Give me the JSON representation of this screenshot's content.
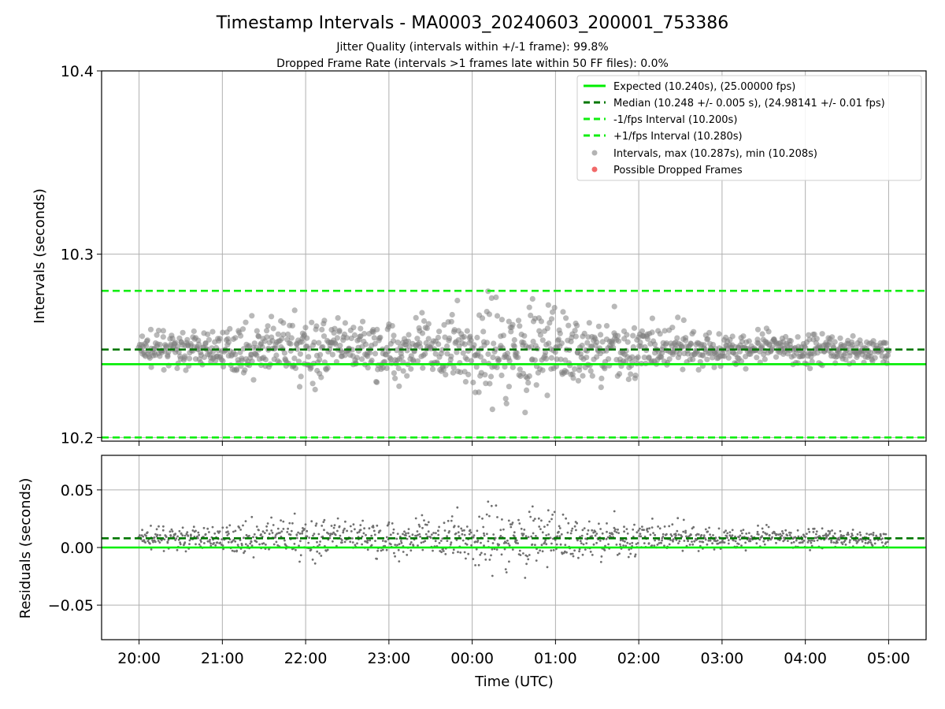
{
  "title": "Timestamp Intervals - MA0003_20240603_200001_753386",
  "subtitle_lines": [
    "Jitter Quality (intervals within +/-1 frame): 99.8%",
    "Dropped Frame Rate (intervals >1 frames late within 50 FF files): 0.0%"
  ],
  "colors": {
    "expected": "#00ee00",
    "median": "#007700",
    "bounds": "#11ee11",
    "points": "#808080",
    "dropped": "#ee4444",
    "grid": "#b0b0b0"
  },
  "chart_data": [
    {
      "type": "scatter",
      "ylabel": "Intervals (seconds)",
      "ylim": [
        10.198,
        10.4
      ],
      "yticks": [
        "10.2",
        "10.3",
        "10.4"
      ],
      "grid": true,
      "legend_position": "top-right",
      "x_range_hours": [
        19.55,
        29.45
      ],
      "lines": [
        {
          "name": "Expected (10.240s), (25.00000 fps)",
          "y": 10.24,
          "style": "solid",
          "color_key": "expected"
        },
        {
          "name": "Median (10.248 +/- 0.005 s), (24.98141 +/- 0.01 fps)",
          "y": 10.248,
          "style": "dashed",
          "color_key": "median"
        },
        {
          "name": "-1/fps Interval (10.200s)",
          "y": 10.2,
          "style": "dashed",
          "color_key": "bounds"
        },
        {
          "name": "+1/fps Interval (10.280s)",
          "y": 10.28,
          "style": "dashed",
          "color_key": "bounds"
        }
      ],
      "series": [
        {
          "name": "Intervals, max (10.287s), min (10.208s)",
          "marker": "circle",
          "color_key": "points",
          "max": 10.287,
          "min": 10.208,
          "center": 10.248,
          "count": 1250
        },
        {
          "name": "Possible Dropped Frames",
          "marker": "circle",
          "color_key": "dropped",
          "count": 0
        }
      ]
    },
    {
      "type": "scatter",
      "xlabel": "Time (UTC)",
      "ylabel": "Residuals (seconds)",
      "ylim": [
        -0.08,
        0.08
      ],
      "yticks": [
        "0.05",
        "0.00",
        "−0.05"
      ],
      "ytick_values": [
        0.05,
        0.0,
        -0.05
      ],
      "xticks": [
        "20:00",
        "21:00",
        "22:00",
        "23:00",
        "00:00",
        "01:00",
        "02:00",
        "03:00",
        "04:00",
        "05:00"
      ],
      "xtick_hours": [
        20,
        21,
        22,
        23,
        24,
        25,
        26,
        27,
        28,
        29
      ],
      "grid": true,
      "lines": [
        {
          "y": 0.0,
          "style": "solid",
          "color_key": "expected"
        },
        {
          "y": 0.008,
          "style": "dashed",
          "color_key": "median"
        }
      ],
      "series": [
        {
          "marker": "dot",
          "color_key": "points",
          "max": 0.047,
          "min": -0.032,
          "center": 0.008,
          "count": 1250
        }
      ]
    }
  ]
}
